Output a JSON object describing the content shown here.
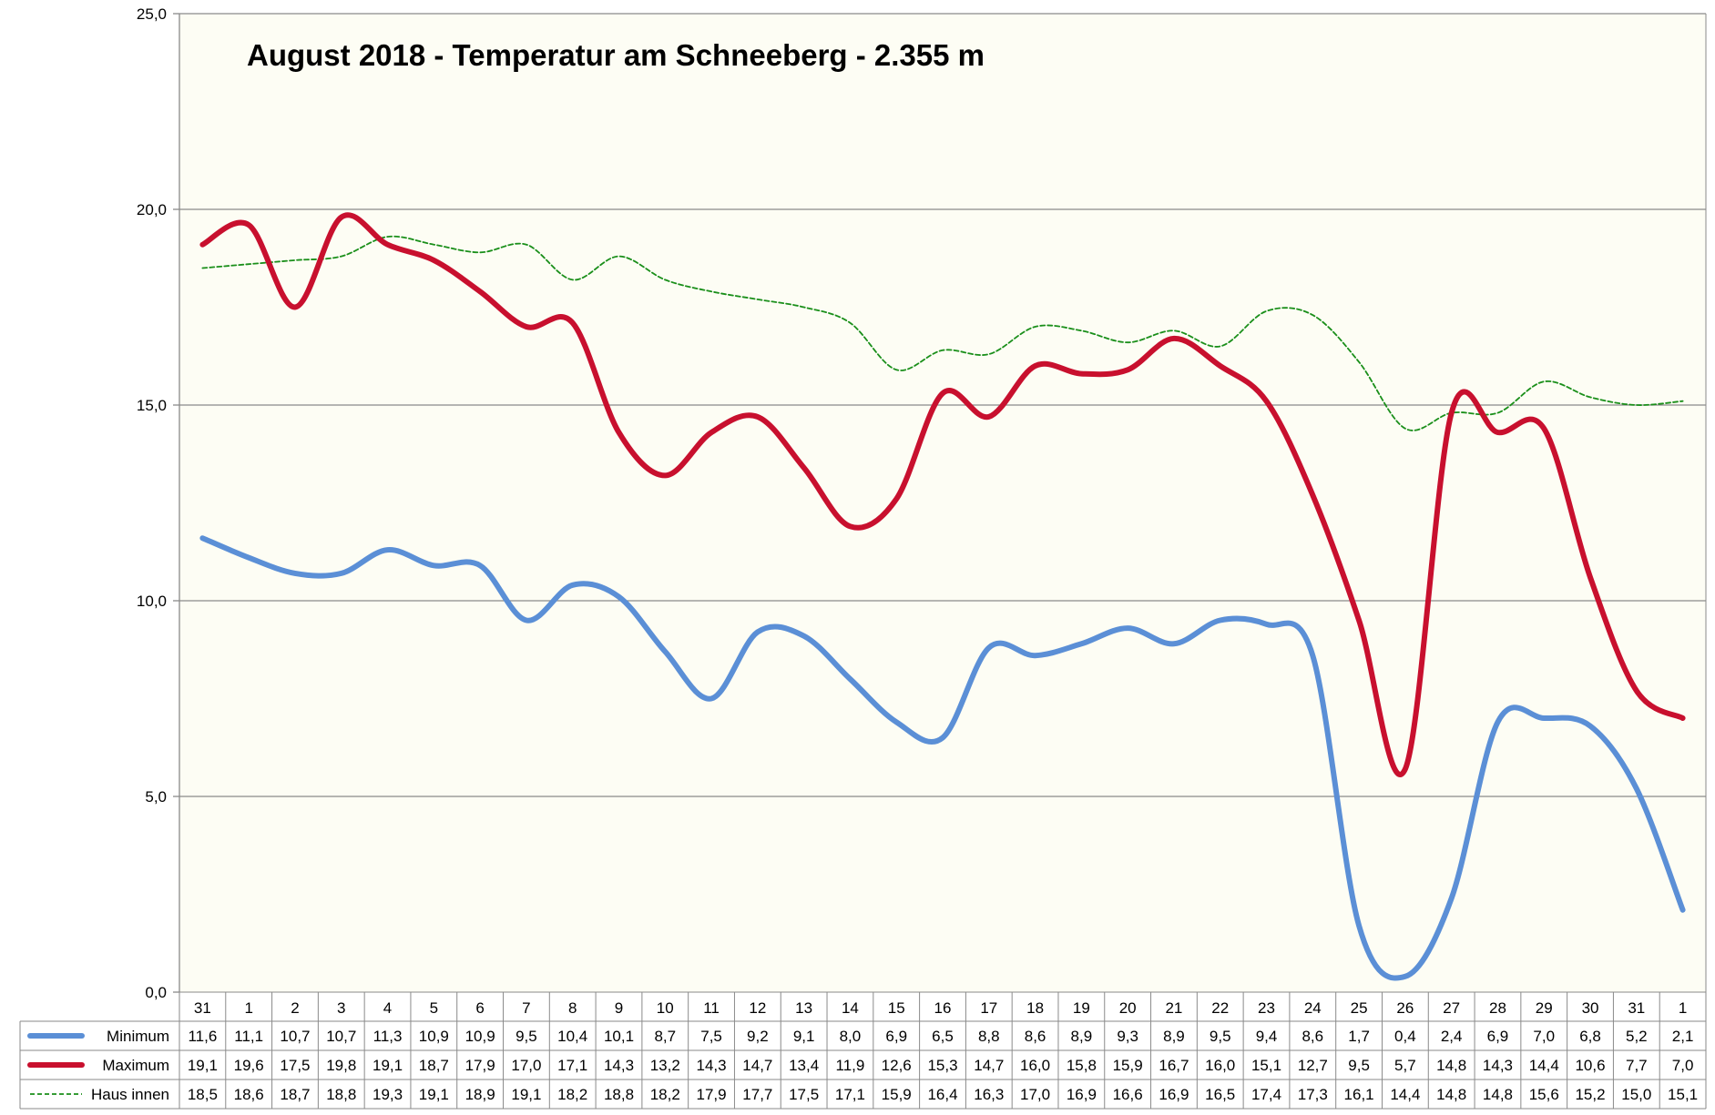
{
  "chart_data": {
    "type": "line",
    "title": "August 2018 - Temperatur am Schneeberg - 2.355 m",
    "xlabel": "",
    "ylabel": "",
    "ylim": [
      0,
      25
    ],
    "y_ticks": [
      "0,0",
      "5,0",
      "10,0",
      "15,0",
      "20,0",
      "25,0"
    ],
    "grid": true,
    "legend_placement": "data table below chart",
    "background_color": "#fdfdf4",
    "categories": [
      "31",
      "1",
      "2",
      "3",
      "4",
      "5",
      "6",
      "7",
      "8",
      "9",
      "10",
      "11",
      "12",
      "13",
      "14",
      "15",
      "16",
      "17",
      "18",
      "19",
      "20",
      "21",
      "22",
      "23",
      "24",
      "25",
      "26",
      "27",
      "28",
      "29",
      "30",
      "31",
      "1"
    ],
    "series": [
      {
        "name": "Minimum",
        "color": "#5b8fd6",
        "style": "solid-thick",
        "values": [
          11.6,
          11.1,
          10.7,
          10.7,
          11.3,
          10.9,
          10.9,
          9.5,
          10.4,
          10.1,
          8.7,
          7.5,
          9.2,
          9.1,
          8.0,
          6.9,
          6.5,
          8.8,
          8.6,
          8.9,
          9.3,
          8.9,
          9.5,
          9.4,
          8.6,
          1.7,
          0.4,
          2.4,
          6.9,
          7.0,
          6.8,
          5.2,
          2.1
        ],
        "labels": [
          "11,6",
          "11,1",
          "10,7",
          "10,7",
          "11,3",
          "10,9",
          "10,9",
          "9,5",
          "10,4",
          "10,1",
          "8,7",
          "7,5",
          "9,2",
          "9,1",
          "8,0",
          "6,9",
          "6,5",
          "8,8",
          "8,6",
          "8,9",
          "9,3",
          "8,9",
          "9,5",
          "9,4",
          "8,6",
          "1,7",
          "0,4",
          "2,4",
          "6,9",
          "7,0",
          "6,8",
          "5,2",
          "2,1"
        ]
      },
      {
        "name": "Maximum",
        "color": "#c8102e",
        "style": "solid-thick",
        "values": [
          19.1,
          19.6,
          17.5,
          19.8,
          19.1,
          18.7,
          17.9,
          17.0,
          17.1,
          14.3,
          13.2,
          14.3,
          14.7,
          13.4,
          11.9,
          12.6,
          15.3,
          14.7,
          16.0,
          15.8,
          15.9,
          16.7,
          16.0,
          15.1,
          12.7,
          9.5,
          5.7,
          14.8,
          14.3,
          14.4,
          10.6,
          7.7,
          7.0
        ],
        "labels": [
          "19,1",
          "19,6",
          "17,5",
          "19,8",
          "19,1",
          "18,7",
          "17,9",
          "17,0",
          "17,1",
          "14,3",
          "13,2",
          "14,3",
          "14,7",
          "13,4",
          "11,9",
          "12,6",
          "15,3",
          "14,7",
          "16,0",
          "15,8",
          "15,9",
          "16,7",
          "16,0",
          "15,1",
          "12,7",
          "9,5",
          "5,7",
          "14,8",
          "14,3",
          "14,4",
          "10,6",
          "7,7",
          "7,0"
        ]
      },
      {
        "name": "Haus innen",
        "color": "#1a8f1a",
        "style": "dashed-thin",
        "values": [
          18.5,
          18.6,
          18.7,
          18.8,
          19.3,
          19.1,
          18.9,
          19.1,
          18.2,
          18.8,
          18.2,
          17.9,
          17.7,
          17.5,
          17.1,
          15.9,
          16.4,
          16.3,
          17.0,
          16.9,
          16.6,
          16.9,
          16.5,
          17.4,
          17.3,
          16.1,
          14.4,
          14.8,
          14.8,
          15.6,
          15.2,
          15.0,
          15.1
        ],
        "labels": [
          "18,5",
          "18,6",
          "18,7",
          "18,8",
          "19,3",
          "19,1",
          "18,9",
          "19,1",
          "18,2",
          "18,8",
          "18,2",
          "17,9",
          "17,7",
          "17,5",
          "17,1",
          "15,9",
          "16,4",
          "16,3",
          "17,0",
          "16,9",
          "16,6",
          "16,9",
          "16,5",
          "17,4",
          "17,3",
          "16,1",
          "14,4",
          "14,8",
          "14,8",
          "15,6",
          "15,2",
          "15,0",
          "15,1"
        ]
      }
    ]
  }
}
